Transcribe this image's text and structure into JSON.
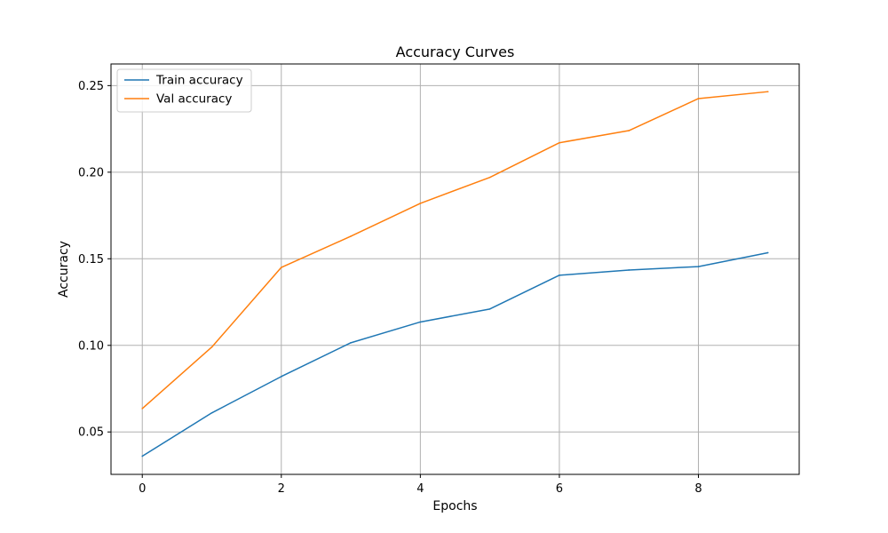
{
  "chart_data": {
    "type": "line",
    "title": "Accuracy Curves",
    "xlabel": "Epochs",
    "ylabel": "Accuracy",
    "x": [
      0,
      1,
      2,
      3,
      4,
      5,
      6,
      7,
      8,
      9
    ],
    "xlim": [
      -0.45,
      9.45
    ],
    "ylim": [
      0.0255,
      0.2625
    ],
    "xticks": [
      0,
      2,
      4,
      6,
      8
    ],
    "xtick_labels": [
      "0",
      "2",
      "4",
      "6",
      "8"
    ],
    "yticks": [
      0.05,
      0.1,
      0.15,
      0.2,
      0.25
    ],
    "ytick_labels": [
      "0.05",
      "0.10",
      "0.15",
      "0.20",
      "0.25"
    ],
    "grid": true,
    "legend_position": "top-left",
    "series": [
      {
        "name": "Train accuracy",
        "color": "#1f77b4",
        "values": [
          0.036,
          0.061,
          0.082,
          0.1015,
          0.1135,
          0.121,
          0.1405,
          0.1435,
          0.1455,
          0.1535
        ]
      },
      {
        "name": "Val accuracy",
        "color": "#ff7f0e",
        "values": [
          0.0635,
          0.099,
          0.145,
          0.163,
          0.182,
          0.197,
          0.217,
          0.224,
          0.2425,
          0.2465
        ]
      }
    ]
  }
}
